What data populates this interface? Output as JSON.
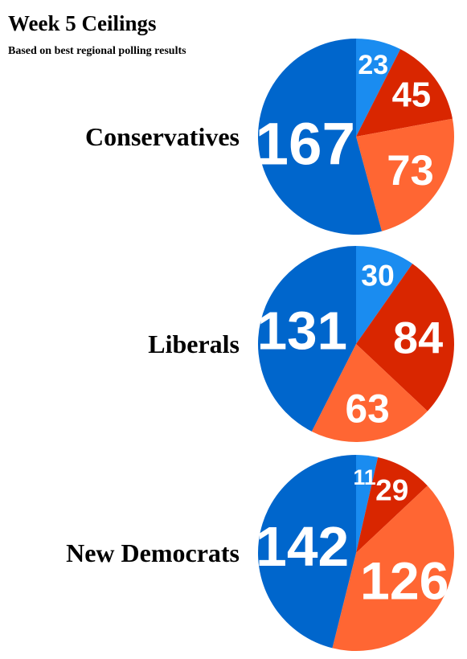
{
  "title": "Week 5 Ceilings",
  "subtitle": "Based on best regional polling results",
  "chart_data": [
    {
      "type": "pie",
      "title": "Conservatives",
      "values": [
        23,
        45,
        73,
        167
      ],
      "colors": [
        "#1a8cf0",
        "#d92600",
        "#ff6633",
        "#0066cc"
      ]
    },
    {
      "type": "pie",
      "title": "Liberals",
      "values": [
        30,
        84,
        63,
        131
      ],
      "colors": [
        "#1a8cf0",
        "#d92600",
        "#ff6633",
        "#0066cc"
      ]
    },
    {
      "type": "pie",
      "title": "New Democrats",
      "values": [
        11,
        29,
        126,
        142
      ],
      "colors": [
        "#1a8cf0",
        "#d92600",
        "#ff6633",
        "#0066cc"
      ]
    }
  ]
}
